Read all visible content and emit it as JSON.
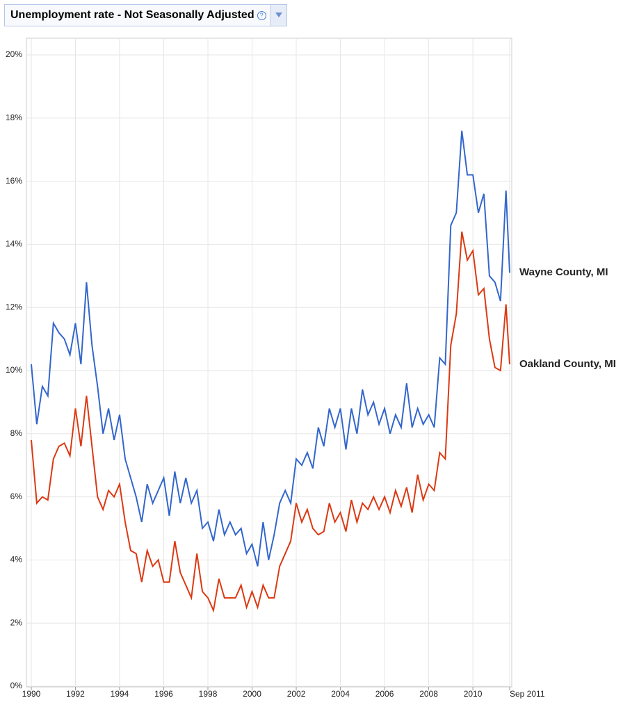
{
  "chart_data": {
    "type": "line",
    "title": "Unemployment rate - Not Seasonally Adjusted",
    "x": [
      1990,
      1990.25,
      1990.5,
      1990.75,
      1991,
      1991.25,
      1991.5,
      1991.75,
      1992,
      1992.25,
      1992.5,
      1992.75,
      1993,
      1993.25,
      1993.5,
      1993.75,
      1994,
      1994.25,
      1994.5,
      1994.75,
      1995,
      1995.25,
      1995.5,
      1995.75,
      1996,
      1996.25,
      1996.5,
      1996.75,
      1997,
      1997.25,
      1997.5,
      1997.75,
      1998,
      1998.25,
      1998.5,
      1998.75,
      1999,
      1999.25,
      1999.5,
      1999.75,
      2000,
      2000.25,
      2000.5,
      2000.75,
      2001,
      2001.25,
      2001.5,
      2001.75,
      2002,
      2002.25,
      2002.5,
      2002.75,
      2003,
      2003.25,
      2003.5,
      2003.75,
      2004,
      2004.25,
      2004.5,
      2004.75,
      2005,
      2005.25,
      2005.5,
      2005.75,
      2006,
      2006.25,
      2006.5,
      2006.75,
      2007,
      2007.25,
      2007.5,
      2007.75,
      2008,
      2008.25,
      2008.5,
      2008.75,
      2009,
      2009.25,
      2009.5,
      2009.75,
      2010,
      2010.25,
      2010.5,
      2010.75,
      2011,
      2011.25,
      2011.5,
      2011.667
    ],
    "series": [
      {
        "name": "Wayne County, MI",
        "color": "#3366cc",
        "values": [
          10.2,
          8.3,
          9.5,
          9.2,
          11.5,
          11.2,
          11.0,
          10.5,
          11.5,
          10.2,
          12.8,
          10.8,
          9.5,
          8.0,
          8.8,
          7.8,
          8.6,
          7.2,
          6.6,
          6.0,
          5.2,
          6.4,
          5.8,
          6.2,
          6.6,
          5.4,
          6.8,
          5.8,
          6.6,
          5.8,
          6.2,
          5.0,
          5.2,
          4.6,
          5.6,
          4.8,
          5.2,
          4.8,
          5.0,
          4.2,
          4.5,
          3.8,
          5.2,
          4.0,
          4.8,
          5.8,
          6.2,
          5.8,
          7.2,
          7.0,
          7.4,
          6.9,
          8.2,
          7.6,
          8.8,
          8.2,
          8.8,
          7.5,
          8.8,
          8.0,
          9.4,
          8.6,
          9.0,
          8.3,
          8.8,
          8.0,
          8.6,
          8.2,
          9.6,
          8.2,
          8.8,
          8.3,
          8.6,
          8.2,
          10.4,
          10.2,
          14.6,
          15.0,
          17.6,
          16.2,
          16.2,
          15.0,
          15.6,
          13.0,
          12.8,
          12.2,
          15.7,
          13.1
        ]
      },
      {
        "name": "Oakland County, MI",
        "color": "#dc3912",
        "values": [
          7.8,
          5.8,
          6.0,
          5.9,
          7.2,
          7.6,
          7.7,
          7.3,
          8.8,
          7.6,
          9.2,
          7.6,
          6.0,
          5.6,
          6.2,
          6.0,
          6.4,
          5.2,
          4.3,
          4.2,
          3.3,
          4.3,
          3.8,
          4.0,
          3.3,
          3.3,
          4.6,
          3.6,
          3.2,
          2.8,
          4.2,
          3.0,
          2.8,
          2.4,
          3.4,
          2.8,
          2.8,
          2.8,
          3.2,
          2.5,
          3.0,
          2.5,
          3.2,
          2.8,
          2.8,
          3.8,
          4.2,
          4.6,
          5.8,
          5.2,
          5.6,
          5.0,
          4.8,
          4.9,
          5.8,
          5.2,
          5.5,
          4.9,
          5.9,
          5.2,
          5.8,
          5.6,
          6.0,
          5.6,
          6.0,
          5.5,
          6.2,
          5.7,
          6.3,
          5.5,
          6.7,
          5.9,
          6.4,
          6.2,
          7.4,
          7.2,
          10.8,
          11.8,
          14.4,
          13.5,
          13.8,
          12.4,
          12.6,
          11.0,
          10.1,
          10.0,
          12.1,
          10.2
        ]
      }
    ],
    "xlim": [
      1990,
      2011.667
    ],
    "xticks": [
      1990,
      1992,
      1994,
      1996,
      1998,
      2000,
      2002,
      2004,
      2006,
      2008,
      2010,
      {
        "value": 2011.667,
        "label": "Sep 2011"
      }
    ],
    "ylim": [
      0,
      20
    ],
    "yticks": [
      {
        "value": 0,
        "label": "0%"
      },
      {
        "value": 2,
        "label": "2%"
      },
      {
        "value": 4,
        "label": "4%"
      },
      {
        "value": 6,
        "label": "6%"
      },
      {
        "value": 8,
        "label": "8%"
      },
      {
        "value": 10,
        "label": "10%"
      },
      {
        "value": 12,
        "label": "12%"
      },
      {
        "value": 14,
        "label": "14%"
      },
      {
        "value": 16,
        "label": "16%"
      },
      {
        "value": 18,
        "label": "18%"
      },
      {
        "value": 20,
        "label": "20%"
      }
    ],
    "grid": true
  }
}
